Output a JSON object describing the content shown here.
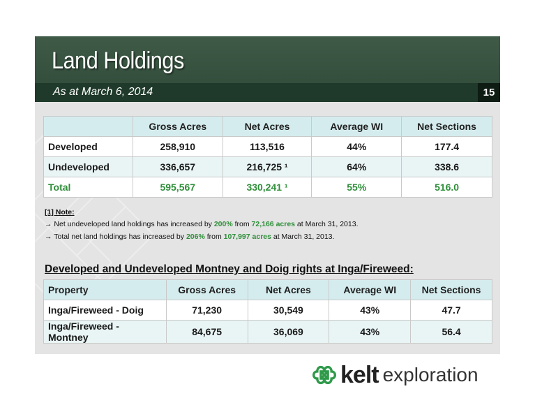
{
  "header": {
    "title": "Land Holdings",
    "subtitle": "As at March 6, 2014",
    "page_number": "15"
  },
  "table1": {
    "columns": [
      "",
      "Gross Acres",
      "Net Acres",
      "Average WI",
      "Net Sections"
    ],
    "rows": [
      [
        "Developed",
        "258,910",
        "113,516",
        "44%",
        "177.4"
      ],
      [
        "Undeveloped",
        "336,657",
        "216,725 ¹",
        "64%",
        "338.6"
      ],
      [
        "Total",
        "595,567",
        "330,241 ¹",
        "55%",
        "516.0"
      ]
    ]
  },
  "notes": {
    "title": "[1] Note:",
    "line1": {
      "prefix": "→ Net undeveloped land holdings has increased by ",
      "pct": "200%",
      "mid": " from ",
      "acres": "72,166 acres",
      "suffix": " at March 31, 2013."
    },
    "line2": {
      "prefix": "→ Total net land holdings has increased by ",
      "pct": "206%",
      "mid": " from ",
      "acres": "107,997 acres",
      "suffix": " at March 31, 2013."
    }
  },
  "section_heading": "Developed and Undeveloped Montney and Doig rights at Inga/Fireweed:",
  "table2": {
    "columns": [
      "Property",
      "Gross Acres",
      "Net Acres",
      "Average WI",
      "Net Sections"
    ],
    "rows": [
      [
        "Inga/Fireweed - Doig",
        "71,230",
        "30,549",
        "43%",
        "47.7"
      ],
      [
        "Inga/Fireweed - Montney",
        "84,675",
        "36,069",
        "43%",
        "56.4"
      ]
    ]
  },
  "logo": {
    "icon": "celtic-knot-icon",
    "word1": "kelt",
    "word2": "exploration",
    "icon_color": "#2f9a4a"
  },
  "colors": {
    "header_green": "#3f5a47",
    "subtitle_bar": "#1f3a2a",
    "highlight_green": "#2f8f3a",
    "table_head": "#d5ecee"
  }
}
